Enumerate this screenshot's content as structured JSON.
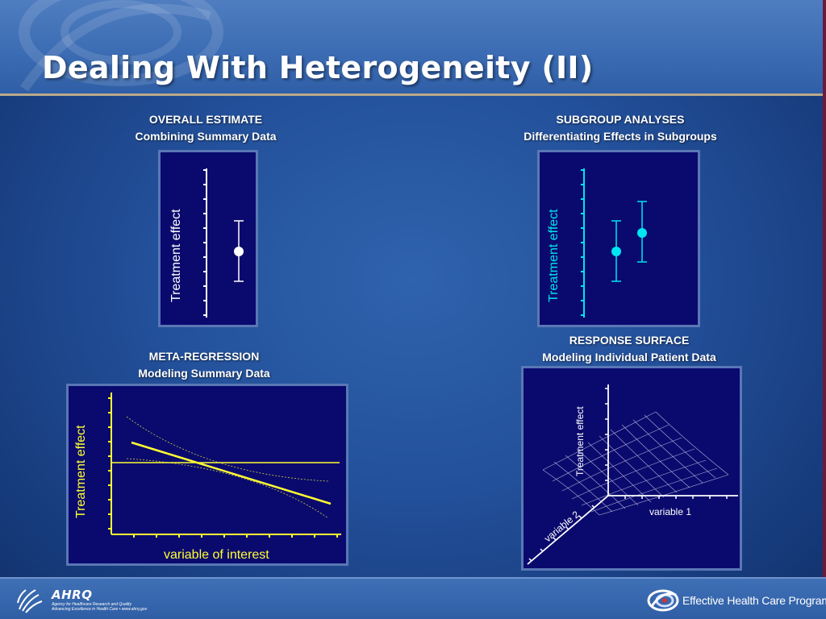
{
  "title": "Dealing With Heterogeneity (II)",
  "panels": {
    "overall": {
      "heading_line1": "OVERALL ESTIMATE",
      "heading_line2": "Combining Summary Data",
      "ylabel": "Treatment effect",
      "color": "#ffffff"
    },
    "subgroup": {
      "heading_line1": "SUBGROUP ANALYSES",
      "heading_line2": "Differentiating Effects in Subgroups",
      "ylabel": "Treatment effect",
      "color": "#00e5f0"
    },
    "metareg": {
      "heading_line1": "META-REGRESSION",
      "heading_line2": "Modeling Summary Data",
      "ylabel": "Treatment effect",
      "xlabel": "variable of interest",
      "color": "#ffff33"
    },
    "surface": {
      "heading_line1": "RESPONSE SURFACE",
      "heading_line2": "Modeling Individual Patient Data",
      "zlabel": "Treatment effect",
      "xlabel": "variable 1",
      "ylabel": "variable 2",
      "color": "#ffffff"
    }
  },
  "footer": {
    "ahrq_name": "AHRQ",
    "ahrq_line1": "Agency for Healthcare Research and Quality",
    "ahrq_line2": "Advancing Excellence in Health Care • www.ahrq.gov",
    "program_name": "Effective Health Care Program"
  },
  "colors": {
    "background": "#23509a",
    "plot_background": "#0a0a6e",
    "header_rule": "#b9a98a"
  }
}
